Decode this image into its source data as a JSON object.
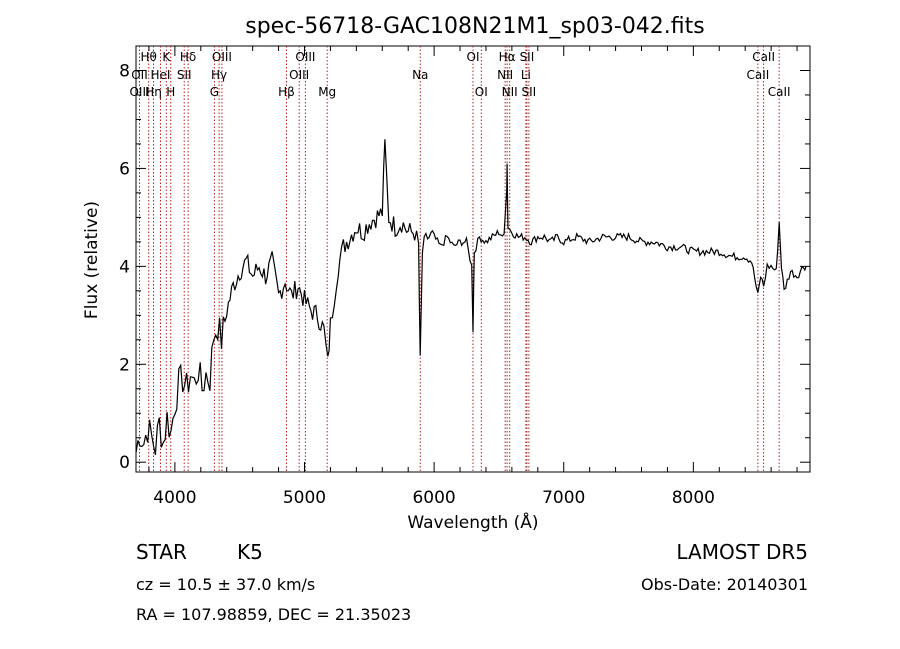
{
  "chart_data": {
    "type": "line",
    "title": "spec-56718-GAC108N21M1_sp03-042.fits",
    "xlabel": "Wavelength (Å)",
    "ylabel": "Flux (relative)",
    "xlim": [
      3700,
      8900
    ],
    "ylim": [
      -0.2,
      8.5
    ],
    "xticks": [
      4000,
      5000,
      6000,
      7000,
      8000
    ],
    "yticks": [
      0,
      2,
      4,
      6,
      8
    ],
    "series": [
      {
        "x": [
          3700,
          3730,
          3760,
          3790,
          3820,
          3850,
          3880,
          3910,
          3940,
          3970,
          4000,
          4030,
          4060,
          4090,
          4120,
          4150,
          4180,
          4210,
          4240,
          4270,
          4300,
          4330,
          4360,
          4400,
          4450,
          4500,
          4550,
          4600,
          4650,
          4700,
          4750,
          4800,
          4850,
          4900,
          4950,
          5000,
          5050,
          5100,
          5150,
          5180,
          5200,
          5230,
          5260,
          5300,
          5350,
          5400,
          5450,
          5500,
          5550,
          5600,
          5620,
          5650,
          5700,
          5750,
          5800,
          5850,
          5880,
          5893,
          5910,
          5950,
          6000,
          6050,
          6100,
          6150,
          6200,
          6250,
          6290,
          6300,
          6310,
          6350,
          6400,
          6450,
          6500,
          6540,
          6560,
          6563,
          6570,
          6600,
          6650,
          6700,
          6750,
          6800,
          6850,
          6900,
          6950,
          7000,
          7100,
          7200,
          7300,
          7400,
          7500,
          7600,
          7700,
          7800,
          7900,
          8000,
          8100,
          8200,
          8300,
          8400,
          8450,
          8498,
          8520,
          8542,
          8570,
          8600,
          8640,
          8662,
          8680,
          8700,
          8750,
          8800,
          8850,
          8870
        ],
        "y": [
          0.2,
          0.6,
          0.4,
          0.7,
          0.5,
          0.3,
          0.8,
          0.4,
          0.9,
          0.6,
          1.2,
          1.6,
          1.7,
          1.5,
          1.8,
          1.6,
          1.9,
          1.5,
          1.8,
          1.7,
          2.6,
          2.8,
          2.5,
          3.1,
          3.6,
          3.9,
          4.1,
          3.8,
          4.0,
          3.8,
          4.1,
          3.4,
          3.7,
          3.4,
          3.6,
          3.3,
          3.1,
          3.0,
          2.7,
          2.0,
          2.8,
          3.4,
          4.0,
          4.4,
          4.6,
          4.8,
          4.7,
          4.9,
          5.0,
          5.1,
          6.5,
          5.0,
          4.8,
          4.9,
          4.7,
          4.7,
          4.4,
          2.0,
          4.3,
          4.6,
          4.6,
          4.4,
          4.6,
          4.4,
          4.5,
          4.5,
          4.0,
          2.7,
          4.3,
          4.6,
          4.5,
          4.6,
          4.7,
          4.6,
          5.6,
          6.1,
          4.8,
          4.7,
          4.6,
          4.6,
          4.5,
          4.6,
          4.6,
          4.5,
          4.6,
          4.5,
          4.6,
          4.5,
          4.6,
          4.6,
          4.6,
          4.5,
          4.5,
          4.4,
          4.4,
          4.3,
          4.3,
          4.3,
          4.2,
          4.2,
          4.1,
          3.4,
          3.8,
          3.6,
          4.0,
          4.0,
          3.9,
          4.9,
          4.0,
          3.5,
          3.9,
          3.8,
          4.0,
          4.0
        ]
      }
    ],
    "line_markers": [
      {
        "labels": [
          "Hθ"
        ],
        "x": 3798,
        "row": 0
      },
      {
        "labels": [
          "OII"
        ],
        "x": 3727,
        "row": 1
      },
      {
        "labels": [
          "OIII"
        ],
        "x": 3727,
        "row": 2
      },
      {
        "labels": [
          "Hη"
        ],
        "x": 3835,
        "row": 2
      },
      {
        "labels": [
          "HeI"
        ],
        "x": 3889,
        "row": 1
      },
      {
        "labels": [
          "K"
        ],
        "x": 3934,
        "row": 0
      },
      {
        "labels": [
          "H"
        ],
        "x": 3968,
        "row": 2
      },
      {
        "labels": [
          "Hδ"
        ],
        "x": 4102,
        "row": 0
      },
      {
        "labels": [
          "SII"
        ],
        "x": 4072,
        "row": 1
      },
      {
        "labels": [
          "OIII"
        ],
        "x": 4363,
        "row": 0
      },
      {
        "labels": [
          "Hγ"
        ],
        "x": 4341,
        "row": 1
      },
      {
        "labels": [
          "G"
        ],
        "x": 4305,
        "row": 2
      },
      {
        "labels": [
          "OIII"
        ],
        "x": 5007,
        "row": 0
      },
      {
        "labels": [
          "OIII"
        ],
        "x": 4959,
        "row": 1
      },
      {
        "labels": [
          "Hβ"
        ],
        "x": 4861,
        "row": 2
      },
      {
        "labels": [
          "Mg"
        ],
        "x": 5175,
        "row": 2
      },
      {
        "labels": [
          "Na"
        ],
        "x": 5893,
        "row": 1
      },
      {
        "labels": [
          "OI"
        ],
        "x": 6300,
        "row": 0
      },
      {
        "labels": [
          "OI"
        ],
        "x": 6364,
        "row": 2
      },
      {
        "labels": [
          "Hα"
        ],
        "x": 6563,
        "row": 0
      },
      {
        "labels": [
          "NII"
        ],
        "x": 6548,
        "row": 1
      },
      {
        "labels": [
          "NII"
        ],
        "x": 6583,
        "row": 2
      },
      {
        "labels": [
          "SII"
        ],
        "x": 6716,
        "row": 0
      },
      {
        "labels": [
          "Li"
        ],
        "x": 6708,
        "row": 1
      },
      {
        "labels": [
          "SII"
        ],
        "x": 6731,
        "row": 2
      },
      {
        "labels": [
          "CaII"
        ],
        "x": 8542,
        "row": 0
      },
      {
        "labels": [
          "CaII"
        ],
        "x": 8498,
        "row": 1
      },
      {
        "labels": [
          "CaII"
        ],
        "x": 8662,
        "row": 2
      }
    ],
    "grid": false
  },
  "info": {
    "object_class": "STAR",
    "subclass": "K5",
    "cz": "cz = 10.5 ± 37.0 km/s",
    "coords": "RA = 107.98859, DEC =  21.35023",
    "survey": "LAMOST DR5",
    "obs_date": "Obs-Date: 20140301"
  },
  "colors": {
    "spectrum": "#000000",
    "marker_line": "#b22222"
  }
}
